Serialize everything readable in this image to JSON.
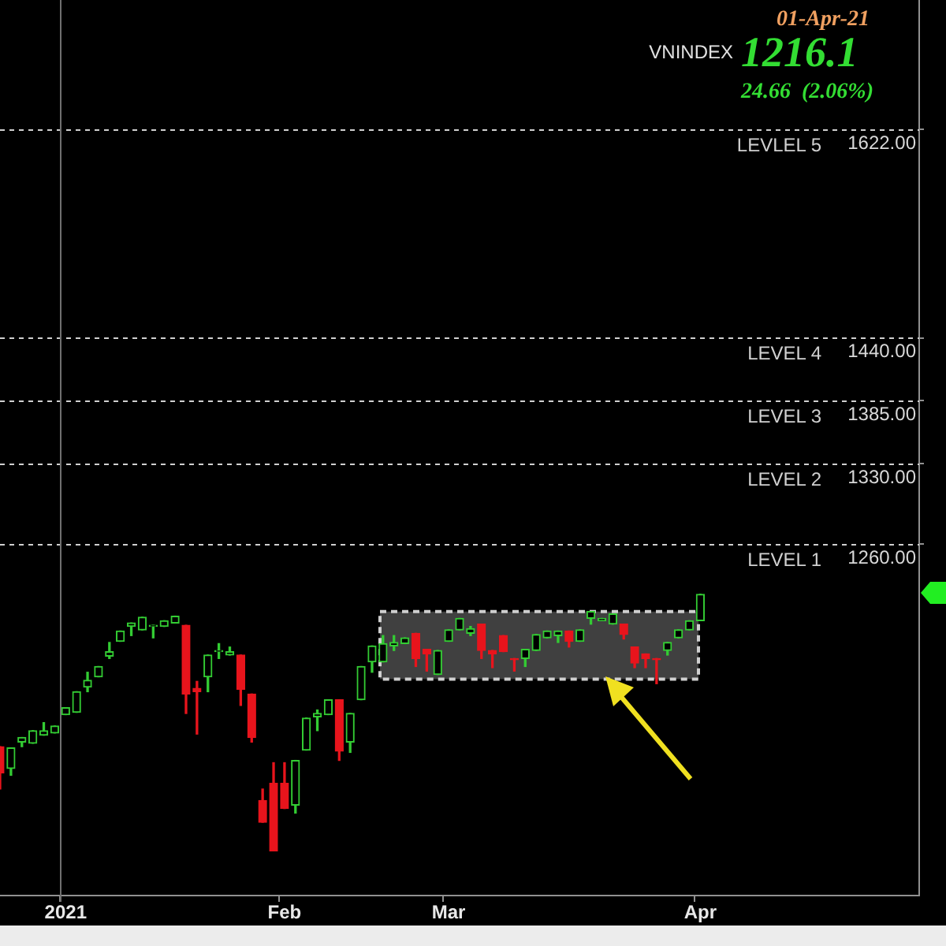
{
  "chart_data": {
    "type": "candlestick",
    "title": "VNINDEX",
    "subtitle": "01-Apr-21",
    "annotations": [
      "1216.1",
      "24.66  (2.06%)"
    ],
    "categories": [
      null,
      null,
      null,
      null,
      null,
      null,
      "2021",
      null,
      null,
      null,
      null,
      null,
      null,
      null,
      null,
      null,
      null,
      null,
      null,
      null,
      null,
      null,
      null,
      null,
      null,
      null,
      "Feb",
      null,
      null,
      null,
      null,
      null,
      null,
      null,
      null,
      null,
      null,
      null,
      null,
      null,
      null,
      "Mar",
      null,
      null,
      null,
      null,
      null,
      null,
      null,
      null,
      null,
      null,
      null,
      null,
      null,
      null,
      null,
      null,
      null,
      null,
      null,
      null,
      null,
      null,
      "Apr",
      null,
      null,
      null,
      null,
      null,
      null,
      null,
      null,
      null,
      null,
      null,
      null,
      null,
      null,
      null,
      null,
      null,
      null,
      null,
      null
    ],
    "ohlc": [
      [
        1083,
        1083,
        1046,
        1060
      ],
      [
        1064,
        1082,
        1058,
        1082
      ],
      [
        1087,
        1091,
        1083,
        1091
      ],
      [
        1086,
        1097,
        1086,
        1097
      ],
      [
        1093,
        1104,
        1093,
        1097
      ],
      [
        1095,
        1101,
        1095,
        1101
      ],
      [
        1111,
        1117,
        1111,
        1117
      ],
      [
        1113,
        1131,
        1113,
        1131
      ],
      [
        1135,
        1148,
        1131,
        1141
      ],
      [
        1144,
        1153,
        1144,
        1153
      ],
      [
        1162,
        1174,
        1160,
        1166
      ],
      [
        1175,
        1184,
        1175,
        1184
      ],
      [
        1188,
        1191,
        1180,
        1191
      ],
      [
        1185,
        1196,
        1185,
        1196
      ],
      [
        1188,
        1189,
        1178,
        1189
      ],
      [
        1188,
        1193,
        1188,
        1193
      ],
      [
        1191,
        1197,
        1191,
        1197
      ],
      [
        1189,
        1189,
        1112,
        1129
      ],
      [
        1134,
        1140,
        1094,
        1131
      ],
      [
        1144,
        1163,
        1131,
        1163
      ],
      [
        1166,
        1173,
        1160,
        1167
      ],
      [
        1163,
        1170,
        1163,
        1166
      ],
      [
        1163,
        1163,
        1119,
        1133
      ],
      [
        1129,
        1129,
        1087,
        1091
      ],
      [
        1036,
        1046,
        1017,
        1017
      ],
      [
        1051,
        1069,
        992,
        992
      ],
      [
        1051,
        1069,
        1029,
        1029
      ],
      [
        1032,
        1071,
        1025,
        1071
      ],
      [
        1080,
        1108,
        1080,
        1108
      ],
      [
        1109,
        1115,
        1097,
        1112
      ],
      [
        1111,
        1124,
        1111,
        1124
      ],
      [
        1124,
        1124,
        1071,
        1079
      ],
      [
        1087,
        1112,
        1078,
        1112
      ],
      [
        1124,
        1153,
        1124,
        1153
      ],
      [
        1157,
        1171,
        1148,
        1171
      ],
      [
        1157,
        1180,
        1157,
        1173
      ],
      [
        1171,
        1180,
        1167,
        1174
      ],
      [
        1173,
        1178,
        1173,
        1178
      ],
      [
        1182,
        1182,
        1153,
        1160
      ],
      [
        1168,
        1168,
        1149,
        1164
      ],
      [
        1146,
        1167,
        1146,
        1167
      ],
      [
        1175,
        1185,
        1175,
        1185
      ],
      [
        1185,
        1195,
        1185,
        1195
      ],
      [
        1182,
        1188,
        1180,
        1186
      ],
      [
        1190,
        1190,
        1160,
        1167
      ],
      [
        1167,
        1167,
        1152,
        1164
      ],
      [
        1180,
        1180,
        1166,
        1166
      ],
      [
        1160,
        1160,
        1149,
        1159
      ],
      [
        1160,
        1168,
        1153,
        1168
      ],
      [
        1167,
        1181,
        1167,
        1181
      ],
      [
        1178,
        1184,
        1178,
        1184
      ],
      [
        1180,
        1184,
        1174,
        1184
      ],
      [
        1184,
        1184,
        1170,
        1175
      ],
      [
        1175,
        1185,
        1175,
        1185
      ],
      [
        1195,
        1201,
        1190,
        1201
      ],
      [
        1193,
        1195,
        1193,
        1195
      ],
      [
        1190,
        1199,
        1190,
        1199
      ],
      [
        1190,
        1190,
        1177,
        1181
      ],
      [
        1170,
        1170,
        1152,
        1156
      ],
      [
        1164,
        1164,
        1152,
        1160
      ],
      [
        1160,
        1160,
        1138,
        1159
      ],
      [
        1167,
        1174,
        1163,
        1174
      ],
      [
        1178,
        1185,
        1178,
        1185
      ],
      [
        1185,
        1193,
        1185,
        1193
      ],
      [
        1193,
        1216.1,
        1193,
        1216.1
      ],
      null,
      null,
      null,
      null,
      null,
      null,
      null,
      null,
      null,
      null,
      null,
      null,
      null,
      null,
      null,
      null,
      null,
      null,
      null,
      null
    ],
    "colors": [
      "#e8141c",
      "#33cc33",
      "#33cc33",
      "#33cc33",
      "#33cc33",
      "#33cc33",
      "#33cc33",
      "#33cc33",
      "#33cc33",
      "#33cc33",
      "#33cc33",
      "#33cc33",
      "#33cc33",
      "#33cc33",
      "#33cc33",
      "#33cc33",
      "#33cc33",
      "#e8141c",
      "#e8141c",
      "#33cc33",
      "#33cc33",
      "#33cc33",
      "#e8141c",
      "#e8141c",
      "#e8141c",
      "#e8141c",
      "#e8141c",
      "#33cc33",
      "#33cc33",
      "#33cc33",
      "#33cc33",
      "#e8141c",
      "#33cc33",
      "#33cc33",
      "#33cc33",
      "#33cc33",
      "#33cc33",
      "#33cc33",
      "#e8141c",
      "#e8141c",
      "#33cc33",
      "#33cc33",
      "#33cc33",
      "#33cc33",
      "#e8141c",
      "#e8141c",
      "#e8141c",
      "#e8141c",
      "#33cc33",
      "#33cc33",
      "#33cc33",
      "#33cc33",
      "#e8141c",
      "#33cc33",
      "#33cc33",
      "#33cc33",
      "#33cc33",
      "#e8141c",
      "#e8141c",
      "#e8141c",
      "#e8141c",
      "#33cc33",
      "#33cc33",
      "#33cc33",
      "#33cc33",
      null,
      null,
      null,
      null,
      null,
      null,
      null,
      null,
      null,
      null,
      null,
      null,
      null,
      null,
      null,
      null,
      null,
      null,
      null,
      null
    ],
    "ylim": [
      953,
      1735
    ],
    "yticks": [
      {
        "value": 1260,
        "label": "1260.00"
      },
      {
        "value": 1330,
        "label": "1330.00"
      },
      {
        "value": 1385,
        "label": "1385.00"
      },
      {
        "value": 1440,
        "label": "1440.00"
      },
      {
        "value": 1622,
        "label": "1622.00"
      }
    ],
    "ref_lines": [
      {
        "axis": "y",
        "value": 1622,
        "label": "LEVLEL 5",
        "color": "#d0d0d0",
        "line_style": "dashed"
      },
      {
        "axis": "y",
        "value": 1440,
        "label": "LEVEL 4",
        "color": "#d0d0d0",
        "line_style": "dashed"
      },
      {
        "axis": "y",
        "value": 1385,
        "label": "LEVEL 3",
        "color": "#d0d0d0",
        "line_style": "dashed"
      },
      {
        "axis": "y",
        "value": 1330,
        "label": "LEVEL 2",
        "color": "#d0d0d0",
        "line_style": "dashed"
      },
      {
        "axis": "y",
        "value": 1260,
        "label": "LEVEL 1",
        "color": "#d0d0d0",
        "line_style": "dashed"
      },
      {
        "axis": "x",
        "value": "2021",
        "color": "#707070",
        "line_style": "solid"
      }
    ],
    "bands": [
      {
        "axis": "y",
        "from": 1142,
        "to": 1201,
        "color": "#404040"
      }
    ],
    "grid": false,
    "legend": false
  }
}
